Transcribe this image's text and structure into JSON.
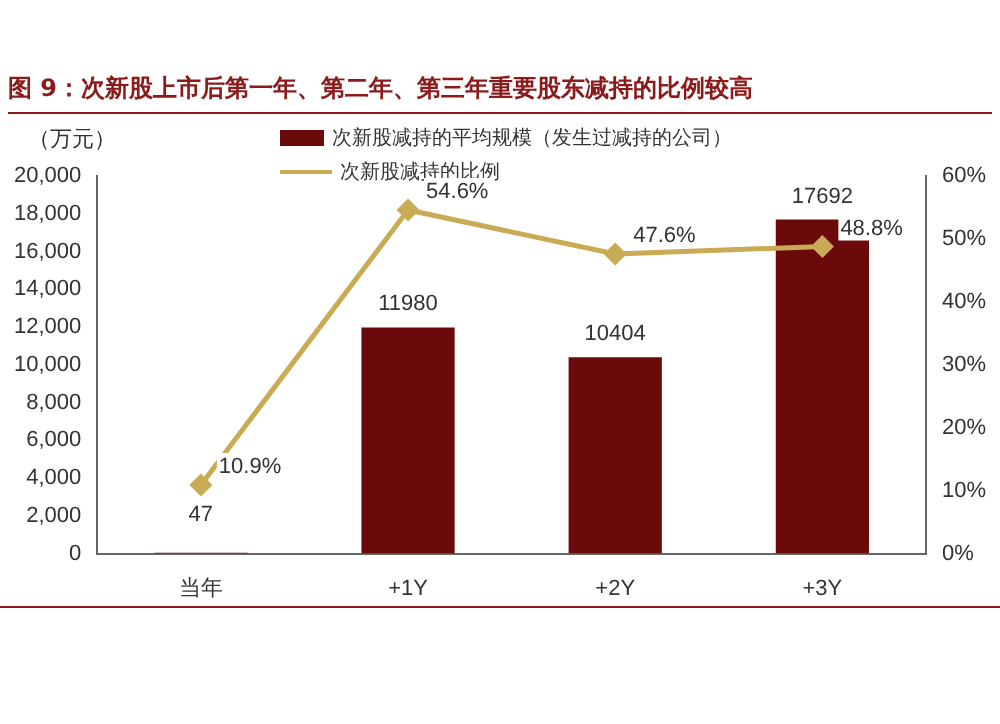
{
  "chart_data": {
    "type": "bar",
    "title": "图 9：次新股上市后第一年、第二年、第三年重要股东减持的比例较高",
    "ylabel": "（万元）",
    "categories": [
      "当年",
      "+1Y",
      "+2Y",
      "+3Y"
    ],
    "series": [
      {
        "name": "次新股减持的平均规模（发生过减持的公司）",
        "color": "#6b0a0a",
        "values": [
          47,
          11980,
          10404,
          17692
        ],
        "value_labels": [
          "47",
          "11980",
          "10404",
          "17692"
        ]
      },
      {
        "name": "次新股减持的比例",
        "type": "line",
        "axis": "y2",
        "color": "#c9ab55",
        "marker": "diamond",
        "values": [
          10.9,
          54.6,
          47.6,
          48.8
        ],
        "value_labels": [
          "10.9%",
          "54.6%",
          "47.6%",
          "48.8%"
        ]
      }
    ],
    "ylim": [
      0,
      20000
    ],
    "yticks": [
      0,
      {
        "value": 2000,
        "label": "2,000"
      },
      {
        "value": 4000,
        "label": "4,000"
      },
      {
        "value": 6000,
        "label": "6,000"
      },
      {
        "value": 8000,
        "label": "8,000"
      },
      {
        "value": 10000,
        "label": "10,000"
      },
      {
        "value": 12000,
        "label": "12,000"
      },
      {
        "value": 14000,
        "label": "14,000"
      },
      {
        "value": 16000,
        "label": "16,000"
      },
      {
        "value": 18000,
        "label": "18,000"
      },
      {
        "value": 20000,
        "label": "20,000"
      }
    ],
    "y2lim": [
      0,
      60
    ],
    "y2ticks": [
      {
        "value": 0,
        "label": "0%"
      },
      {
        "value": 10,
        "label": "10%"
      },
      {
        "value": 20,
        "label": "20%"
      },
      {
        "value": 30,
        "label": "30%"
      },
      {
        "value": 40,
        "label": "40%"
      },
      {
        "value": 50,
        "label": "50%"
      },
      {
        "value": 60,
        "label": "60%"
      }
    ],
    "grid": false,
    "legend": "top"
  }
}
